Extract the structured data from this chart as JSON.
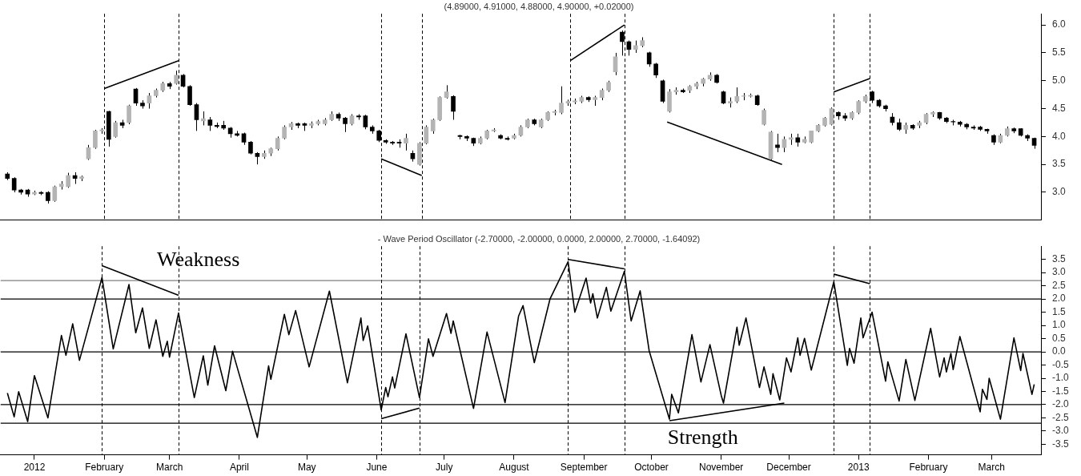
{
  "chart_data": [
    {
      "type": "candlestick",
      "title": "(4.89000, 4.91000, 4.88000, 4.90000, +0.02000)",
      "x": [
        "2011-12-20",
        "2011-12-23",
        "2011-12-26",
        "2011-12-29",
        "2012-01-01",
        "2012-01-04",
        "2012-01-07",
        "2012-01-10",
        "2012-01-13",
        "2012-01-16",
        "2012-01-19",
        "2012-01-22",
        "2012-01-25",
        "2012-01-28",
        "2012-01-31",
        "2012-02-03",
        "2012-02-06",
        "2012-02-09",
        "2012-02-12",
        "2012-02-15",
        "2012-02-18",
        "2012-02-21",
        "2012-02-24",
        "2012-02-27",
        "2012-03-01",
        "2012-03-04",
        "2012-03-07",
        "2012-03-10",
        "2012-03-13",
        "2012-03-16",
        "2012-03-19",
        "2012-03-22",
        "2012-03-25",
        "2012-03-28",
        "2012-03-31",
        "2012-04-03",
        "2012-04-06",
        "2012-04-09",
        "2012-04-12",
        "2012-04-15",
        "2012-04-18",
        "2012-04-21",
        "2012-04-24",
        "2012-04-27",
        "2012-04-30",
        "2012-05-03",
        "2012-05-06",
        "2012-05-09",
        "2012-05-12",
        "2012-05-15",
        "2012-05-18",
        "2012-05-21",
        "2012-05-24",
        "2012-05-27",
        "2012-05-30",
        "2012-06-02",
        "2012-06-05",
        "2012-06-08",
        "2012-06-11",
        "2012-06-14",
        "2012-06-17",
        "2012-06-20",
        "2012-06-23",
        "2012-06-26",
        "2012-06-29",
        "2012-07-02",
        "2012-07-05",
        "2012-07-08",
        "2012-07-11",
        "2012-07-14",
        "2012-07-17",
        "2012-07-20",
        "2012-07-23",
        "2012-07-26",
        "2012-07-29",
        "2012-08-01",
        "2012-08-04",
        "2012-08-07",
        "2012-08-10",
        "2012-08-13",
        "2012-08-16",
        "2012-08-19",
        "2012-08-22",
        "2012-08-25",
        "2012-08-28",
        "2012-08-31",
        "2012-09-03",
        "2012-09-06",
        "2012-09-09",
        "2012-09-12",
        "2012-09-15",
        "2012-09-18",
        "2012-09-21",
        "2012-09-24",
        "2012-09-27",
        "2012-09-30",
        "2012-10-03",
        "2012-10-06",
        "2012-10-09",
        "2012-10-12",
        "2012-10-15",
        "2012-10-18",
        "2012-10-21",
        "2012-10-24",
        "2012-10-27",
        "2012-10-30",
        "2012-11-02",
        "2012-11-05",
        "2012-11-08",
        "2012-11-11",
        "2012-11-14",
        "2012-11-17",
        "2012-11-20",
        "2012-11-23",
        "2012-11-26",
        "2012-11-29",
        "2012-12-02",
        "2012-12-05",
        "2012-12-08",
        "2012-12-11",
        "2012-12-14",
        "2012-12-17",
        "2012-12-20",
        "2012-12-23",
        "2012-12-26",
        "2012-12-29",
        "2013-01-01",
        "2013-01-04",
        "2013-01-07",
        "2013-01-10",
        "2013-01-13",
        "2013-01-16",
        "2013-01-19",
        "2013-01-22",
        "2013-01-25",
        "2013-01-28",
        "2013-01-31",
        "2013-02-03",
        "2013-02-06",
        "2013-02-09",
        "2013-02-12",
        "2013-02-15",
        "2013-02-18",
        "2013-02-21",
        "2013-02-24",
        "2013-02-27",
        "2013-03-02",
        "2013-03-05",
        "2013-03-08",
        "2013-03-11",
        "2013-03-14",
        "2013-03-17",
        "2013-03-20"
      ],
      "ohlc": [
        [
          3.33,
          3.36,
          3.22,
          3.25
        ],
        [
          3.25,
          3.27,
          3.0,
          3.04
        ],
        [
          3.04,
          3.06,
          2.96,
          3.0
        ],
        [
          3.04,
          3.06,
          2.92,
          2.97
        ],
        [
          2.97,
          3.03,
          2.95,
          3.0
        ],
        [
          3.0,
          3.02,
          2.95,
          2.98
        ],
        [
          3.0,
          3.02,
          2.8,
          2.85
        ],
        [
          2.85,
          3.12,
          2.83,
          3.1
        ],
        [
          3.1,
          3.2,
          3.05,
          3.15
        ],
        [
          3.1,
          3.35,
          3.08,
          3.3
        ],
        [
          3.3,
          3.36,
          3.15,
          3.25
        ],
        [
          3.25,
          3.3,
          3.2,
          3.28
        ],
        [
          3.6,
          3.85,
          3.58,
          3.8
        ],
        [
          3.8,
          4.12,
          3.78,
          4.1
        ],
        [
          4.1,
          4.15,
          4.05,
          4.12
        ],
        [
          4.45,
          4.46,
          3.82,
          3.95
        ],
        [
          4.0,
          4.28,
          3.98,
          4.25
        ],
        [
          4.25,
          4.3,
          4.15,
          4.2
        ],
        [
          4.25,
          4.57,
          4.22,
          4.55
        ],
        [
          4.85,
          4.87,
          4.55,
          4.6
        ],
        [
          4.6,
          4.65,
          4.5,
          4.55
        ],
        [
          4.6,
          4.78,
          4.5,
          4.73
        ],
        [
          4.73,
          4.86,
          4.7,
          4.83
        ],
        [
          4.83,
          4.98,
          4.8,
          4.95
        ],
        [
          4.95,
          4.98,
          4.85,
          4.9
        ],
        [
          4.95,
          5.18,
          4.93,
          5.1
        ],
        [
          5.1,
          5.12,
          4.88,
          4.9
        ],
        [
          4.9,
          4.92,
          4.55,
          4.57
        ],
        [
          4.57,
          4.6,
          4.1,
          4.3
        ],
        [
          4.28,
          4.45,
          4.2,
          4.32
        ],
        [
          4.3,
          4.35,
          4.1,
          4.2
        ],
        [
          4.2,
          4.25,
          4.15,
          4.18
        ],
        [
          4.2,
          4.28,
          4.12,
          4.15
        ],
        [
          4.15,
          4.17,
          3.98,
          4.05
        ],
        [
          4.05,
          4.1,
          4.0,
          4.02
        ],
        [
          4.05,
          4.07,
          3.85,
          3.9
        ],
        [
          3.9,
          3.92,
          3.68,
          3.7
        ],
        [
          3.7,
          3.72,
          3.5,
          3.64
        ],
        [
          3.64,
          3.75,
          3.6,
          3.7
        ],
        [
          3.7,
          3.8,
          3.65,
          3.78
        ],
        [
          3.78,
          4.0,
          3.75,
          3.97
        ],
        [
          3.97,
          4.2,
          3.95,
          4.17
        ],
        [
          4.17,
          4.26,
          4.12,
          4.23
        ],
        [
          4.23,
          4.25,
          4.15,
          4.2
        ],
        [
          4.23,
          4.25,
          4.1,
          4.2
        ],
        [
          4.2,
          4.27,
          4.15,
          4.23
        ],
        [
          4.23,
          4.3,
          4.2,
          4.27
        ],
        [
          4.23,
          4.33,
          4.2,
          4.3
        ],
        [
          4.3,
          4.45,
          4.28,
          4.4
        ],
        [
          4.4,
          4.43,
          4.28,
          4.33
        ],
        [
          4.33,
          4.35,
          4.08,
          4.23
        ],
        [
          4.23,
          4.4,
          4.2,
          4.37
        ],
        [
          4.37,
          4.4,
          4.3,
          4.35
        ],
        [
          4.37,
          4.39,
          4.13,
          4.17
        ],
        [
          4.17,
          4.2,
          4.05,
          4.1
        ],
        [
          4.1,
          4.12,
          3.9,
          3.93
        ],
        [
          3.93,
          3.95,
          3.87,
          3.9
        ],
        [
          3.9,
          3.92,
          3.85,
          3.88
        ],
        [
          3.9,
          3.95,
          3.8,
          3.88
        ],
        [
          3.88,
          4.05,
          3.75,
          3.97
        ],
        [
          3.7,
          3.75,
          3.55,
          3.6
        ],
        [
          3.5,
          3.9,
          3.48,
          3.88
        ],
        [
          3.88,
          4.2,
          3.86,
          4.17
        ],
        [
          4.1,
          4.32,
          4.05,
          4.3
        ],
        [
          4.3,
          4.72,
          4.28,
          4.7
        ],
        [
          4.7,
          4.92,
          4.68,
          4.8
        ],
        [
          4.72,
          4.74,
          4.3,
          4.45
        ],
        [
          4.02,
          4.03,
          3.95,
          4.0
        ],
        [
          4.0,
          4.02,
          3.92,
          3.97
        ],
        [
          3.97,
          3.98,
          3.83,
          3.88
        ],
        [
          3.88,
          4.0,
          3.86,
          3.97
        ],
        [
          3.97,
          4.12,
          3.95,
          4.1
        ],
        [
          4.1,
          4.15,
          4.08,
          4.12
        ],
        [
          4.02,
          4.04,
          3.95,
          3.97
        ],
        [
          3.97,
          4.0,
          3.93,
          3.95
        ],
        [
          3.97,
          4.05,
          3.95,
          4.02
        ],
        [
          4.02,
          4.2,
          4.0,
          4.17
        ],
        [
          4.17,
          4.32,
          4.15,
          4.3
        ],
        [
          4.3,
          4.32,
          4.2,
          4.23
        ],
        [
          4.17,
          4.32,
          4.15,
          4.3
        ],
        [
          4.3,
          4.45,
          4.28,
          4.43
        ],
        [
          4.43,
          4.48,
          4.38,
          4.45
        ],
        [
          4.43,
          4.9,
          4.4,
          4.6
        ],
        [
          4.6,
          4.66,
          4.55,
          4.63
        ],
        [
          4.62,
          4.68,
          4.58,
          4.64
        ],
        [
          4.63,
          4.73,
          4.6,
          4.7
        ],
        [
          4.7,
          4.72,
          4.62,
          4.66
        ],
        [
          4.66,
          4.73,
          4.55,
          4.7
        ],
        [
          4.7,
          4.86,
          4.65,
          4.83
        ],
        [
          4.83,
          5.0,
          4.8,
          4.97
        ],
        [
          5.16,
          5.5,
          5.1,
          5.43
        ],
        [
          5.87,
          5.9,
          5.45,
          5.7
        ],
        [
          5.7,
          5.72,
          5.45,
          5.56
        ],
        [
          5.56,
          5.72,
          5.5,
          5.63
        ],
        [
          5.63,
          5.78,
          5.6,
          5.72
        ],
        [
          5.5,
          5.52,
          5.25,
          5.3
        ],
        [
          5.3,
          5.32,
          5.05,
          5.1
        ],
        [
          5.0,
          5.02,
          4.6,
          4.63
        ],
        [
          4.45,
          4.85,
          4.43,
          4.8
        ],
        [
          4.8,
          4.88,
          4.75,
          4.83
        ],
        [
          4.83,
          4.86,
          4.78,
          4.8
        ],
        [
          4.83,
          4.92,
          4.78,
          4.9
        ],
        [
          4.9,
          4.98,
          4.85,
          4.95
        ],
        [
          4.95,
          5.05,
          4.9,
          5.03
        ],
        [
          5.03,
          5.15,
          5.0,
          5.1
        ],
        [
          5.1,
          5.12,
          4.95,
          4.97
        ],
        [
          4.8,
          4.82,
          4.58,
          4.6
        ],
        [
          4.6,
          4.7,
          4.52,
          4.63
        ],
        [
          4.63,
          4.88,
          4.6,
          4.72
        ],
        [
          4.72,
          4.78,
          4.65,
          4.73
        ],
        [
          4.72,
          4.77,
          4.7,
          4.74
        ],
        [
          4.73,
          4.75,
          4.55,
          4.57
        ],
        [
          4.22,
          4.5,
          4.2,
          4.47
        ],
        [
          3.6,
          4.1,
          3.58,
          4.08
        ],
        [
          3.85,
          4.05,
          3.72,
          3.8
        ],
        [
          3.8,
          4.0,
          3.72,
          3.95
        ],
        [
          3.95,
          4.05,
          3.85,
          3.98
        ],
        [
          3.98,
          4.05,
          3.82,
          3.9
        ],
        [
          3.9,
          4.0,
          3.88,
          3.95
        ],
        [
          3.9,
          4.1,
          3.88,
          4.1
        ],
        [
          4.1,
          4.22,
          4.08,
          4.2
        ],
        [
          4.2,
          4.35,
          4.18,
          4.33
        ],
        [
          4.22,
          4.52,
          4.2,
          4.5
        ],
        [
          4.43,
          4.45,
          4.3,
          4.37
        ],
        [
          4.37,
          4.42,
          4.28,
          4.33
        ],
        [
          4.33,
          4.45,
          4.3,
          4.43
        ],
        [
          4.43,
          4.65,
          4.4,
          4.63
        ],
        [
          4.63,
          4.75,
          4.6,
          4.72
        ],
        [
          4.8,
          4.82,
          4.6,
          4.65
        ],
        [
          4.65,
          4.67,
          4.52,
          4.55
        ],
        [
          4.55,
          4.57,
          4.45,
          4.5
        ],
        [
          4.35,
          4.42,
          4.2,
          4.25
        ],
        [
          4.25,
          4.32,
          4.1,
          4.13
        ],
        [
          4.13,
          4.25,
          4.05,
          4.2
        ],
        [
          4.2,
          4.22,
          4.12,
          4.15
        ],
        [
          4.2,
          4.28,
          4.15,
          4.25
        ],
        [
          4.25,
          4.42,
          4.22,
          4.4
        ],
        [
          4.4,
          4.45,
          4.35,
          4.43
        ],
        [
          4.43,
          4.44,
          4.3,
          4.33
        ],
        [
          4.33,
          4.35,
          4.24,
          4.27
        ],
        [
          4.27,
          4.3,
          4.2,
          4.26
        ],
        [
          4.26,
          4.28,
          4.18,
          4.22
        ],
        [
          4.22,
          4.24,
          4.13,
          4.17
        ],
        [
          4.17,
          4.2,
          4.12,
          4.15
        ],
        [
          4.17,
          4.19,
          4.1,
          4.13
        ],
        [
          4.13,
          4.14,
          4.05,
          4.1
        ],
        [
          4.02,
          4.04,
          3.85,
          3.9
        ],
        [
          3.9,
          4.05,
          3.88,
          4.02
        ],
        [
          4.02,
          4.18,
          4.0,
          4.14
        ],
        [
          4.14,
          4.16,
          4.06,
          4.1
        ],
        [
          4.14,
          4.15,
          4.0,
          4.02
        ],
        [
          4.02,
          4.04,
          3.92,
          3.97
        ],
        [
          3.97,
          3.98,
          3.78,
          3.84
        ]
      ],
      "series": [
        {
          "type": "line",
          "x": [
            "2012-02-01",
            "2012-03-05"
          ],
          "values": [
            4.86,
            5.36
          ],
          "color": "#000000"
        },
        {
          "type": "line",
          "x": [
            "2012-06-03",
            "2012-06-21"
          ],
          "values": [
            3.6,
            3.3
          ],
          "color": "#000000"
        },
        {
          "type": "line",
          "x": [
            "2012-08-26",
            "2012-09-19"
          ],
          "values": [
            5.36,
            6.0
          ],
          "color": "#000000"
        },
        {
          "type": "line",
          "x": [
            "2012-10-08",
            "2012-11-28"
          ],
          "values": [
            4.26,
            3.5
          ],
          "color": "#000000"
        },
        {
          "type": "line",
          "x": [
            "2012-12-21",
            "2013-01-06"
          ],
          "values": [
            4.8,
            5.04
          ],
          "color": "#000000"
        }
      ],
      "xlim": [
        "2011-12-17",
        "2013-03-23"
      ],
      "ylim": [
        2.5,
        6.2
      ],
      "yticks": [
        {
          "value": 3,
          "label": "3.0"
        },
        {
          "value": 3.5,
          "label": "3.5"
        },
        {
          "value": 4,
          "label": "4.0"
        },
        {
          "value": 4.5,
          "label": "4.5"
        },
        {
          "value": 5,
          "label": "5.0"
        },
        {
          "value": 5.5,
          "label": "5.5"
        },
        {
          "value": 6,
          "label": "6.0"
        }
      ],
      "tick_labels": "y",
      "ref_lines": [
        {
          "axis": "x",
          "value": "2012-02-01",
          "line_style": "dashed",
          "color": "#000000"
        },
        {
          "axis": "x",
          "value": "2012-03-05",
          "line_style": "dashed",
          "color": "#000000"
        },
        {
          "axis": "x",
          "value": "2012-06-03",
          "line_style": "dashed",
          "color": "#000000"
        },
        {
          "axis": "x",
          "value": "2012-06-21",
          "line_style": "dashed",
          "color": "#000000"
        },
        {
          "axis": "x",
          "value": "2012-08-26",
          "line_style": "dashed",
          "color": "#000000"
        },
        {
          "axis": "x",
          "value": "2012-09-19",
          "line_style": "dashed",
          "color": "#000000"
        },
        {
          "axis": "x",
          "value": "2012-12-21",
          "line_style": "dashed",
          "color": "#000000"
        },
        {
          "axis": "x",
          "value": "2013-01-06",
          "line_style": "dashed",
          "color": "#000000"
        }
      ]
    },
    {
      "type": "line",
      "title": "- Wave Period Oscillator (-2.70000, -2.00000, 0.0000, 2.00000, 2.70000, -1.64092)",
      "series": [
        {
          "x": [
            "2011-12-20",
            "2011-12-23",
            "2011-12-25",
            "2011-12-29",
            "2012-01-01",
            "2012-01-07",
            "2012-01-13",
            "2012-01-15",
            "2012-01-18",
            "2012-01-21",
            "2012-01-31",
            "2012-02-05",
            "2012-02-12",
            "2012-02-15",
            "2012-02-18",
            "2012-02-21",
            "2012-02-24",
            "2012-02-27",
            "2012-02-29",
            "2012-03-01",
            "2012-03-05",
            "2012-03-12",
            "2012-03-16",
            "2012-03-18",
            "2012-03-21",
            "2012-03-26",
            "2012-03-29",
            "2012-04-09",
            "2012-04-14",
            "2012-04-15",
            "2012-04-21",
            "2012-04-23",
            "2012-04-26",
            "2012-05-02",
            "2012-05-11",
            "2012-05-19",
            "2012-05-25",
            "2012-05-26",
            "2012-05-28",
            "2012-06-03",
            "2012-06-05",
            "2012-06-06",
            "2012-06-08",
            "2012-06-09",
            "2012-06-14",
            "2012-06-20",
            "2012-06-24",
            "2012-06-26",
            "2012-07-02",
            "2012-07-04",
            "2012-07-05",
            "2012-07-14",
            "2012-07-20",
            "2012-07-28",
            "2012-08-03",
            "2012-08-05",
            "2012-08-10",
            "2012-08-17",
            "2012-08-25",
            "2012-08-28",
            "2012-09-02",
            "2012-09-04",
            "2012-09-05",
            "2012-09-07",
            "2012-09-11",
            "2012-09-13",
            "2012-09-19",
            "2012-09-22",
            "2012-09-26",
            "2012-09-30",
            "2012-10-09",
            "2012-10-10",
            "2012-10-13",
            "2012-10-19",
            "2012-10-23",
            "2012-10-27",
            "2012-11-01",
            "2012-11-02",
            "2012-11-08",
            "2012-11-09",
            "2012-11-12",
            "2012-11-18",
            "2012-11-20",
            "2012-11-23",
            "2012-11-24",
            "2012-11-27",
            "2012-11-30",
            "2012-12-02",
            "2012-12-05",
            "2012-12-06",
            "2012-12-08",
            "2012-12-11",
            "2012-12-21",
            "2012-12-27",
            "2012-12-28",
            "2012-12-30",
            "2013-01-02",
            "2013-01-03",
            "2013-01-07",
            "2013-01-13",
            "2013-01-14",
            "2013-01-19",
            "2013-01-22",
            "2013-01-26",
            "2013-02-02",
            "2013-02-06",
            "2013-02-08",
            "2013-02-09",
            "2013-02-11",
            "2013-02-12",
            "2013-02-15",
            "2013-02-24",
            "2013-02-25",
            "2013-02-27",
            "2013-02-28",
            "2013-03-05",
            "2013-03-11",
            "2013-03-14",
            "2013-03-15",
            "2013-03-19",
            "2013-03-20"
          ],
          "values": [
            -1.56,
            -2.46,
            -1.51,
            -2.64,
            -0.9,
            -2.5,
            0.62,
            -0.13,
            1.06,
            -0.32,
            2.81,
            0.11,
            2.55,
            0.72,
            1.66,
            0.13,
            1.21,
            -0.17,
            0.4,
            -0.2,
            1.47,
            -1.73,
            -0.15,
            -1.26,
            0.23,
            -1.47,
            0.02,
            -3.24,
            -0.53,
            -1.04,
            1.42,
            0.65,
            1.56,
            -0.57,
            2.3,
            -1.17,
            1.28,
            0.43,
            0.98,
            -2.2,
            -1.35,
            -1.7,
            -0.95,
            -1.37,
            0.68,
            -1.73,
            0.49,
            -0.17,
            1.45,
            0.7,
            1.17,
            -2.14,
            0.75,
            -1.92,
            1.35,
            1.75,
            -0.41,
            2.01,
            3.41,
            1.5,
            2.79,
            1.85,
            2.2,
            1.28,
            2.44,
            1.54,
            3.05,
            1.17,
            2.31,
            0.04,
            -2.55,
            -1.61,
            -2.31,
            0.65,
            -1.14,
            0.27,
            -1.65,
            -1.94,
            0.93,
            0.25,
            1.28,
            -1.35,
            -0.57,
            -1.61,
            -0.83,
            -1.82,
            -0.23,
            -0.76,
            0.53,
            -0.13,
            0.51,
            -0.69,
            2.65,
            -0.51,
            0.13,
            -0.43,
            1.28,
            0.53,
            1.5,
            -1.11,
            -0.38,
            -1.86,
            -0.29,
            -1.84,
            0.89,
            -0.95,
            -0.23,
            -0.76,
            -0.06,
            -0.67,
            0.58,
            -2.27,
            -1.42,
            -1.8,
            -1.0,
            -2.55,
            0.53,
            -0.71,
            -0.06,
            -1.61,
            -1.23
          ],
          "color": "#000000"
        },
        {
          "x": [
            "2012-01-31",
            "2012-03-05"
          ],
          "values": [
            3.26,
            2.14
          ],
          "color": "#000000"
        },
        {
          "x": [
            "2012-06-03",
            "2012-06-20"
          ],
          "values": [
            -2.53,
            -2.13
          ],
          "color": "#000000"
        },
        {
          "x": [
            "2012-08-25",
            "2012-09-19"
          ],
          "values": [
            3.5,
            3.14
          ],
          "color": "#000000"
        },
        {
          "x": [
            "2012-10-09",
            "2012-11-29"
          ],
          "values": [
            -2.61,
            -1.94
          ],
          "color": "#000000"
        },
        {
          "x": [
            "2012-12-21",
            "2013-01-06"
          ],
          "values": [
            2.94,
            2.58
          ],
          "color": "#000000"
        }
      ],
      "xlim": [
        "2011-12-17",
        "2013-03-23"
      ],
      "xticks": [
        {
          "value": "2012-01-01",
          "label": "2012"
        },
        {
          "value": "2012-02-01",
          "label": "February"
        },
        {
          "value": "2012-03-01",
          "label": "March"
        },
        {
          "value": "2012-04-01",
          "label": "April"
        },
        {
          "value": "2012-05-01",
          "label": "May"
        },
        {
          "value": "2012-06-01",
          "label": "June"
        },
        {
          "value": "2012-07-01",
          "label": "July"
        },
        {
          "value": "2012-08-01",
          "label": "August"
        },
        {
          "value": "2012-09-01",
          "label": "September"
        },
        {
          "value": "2012-10-01",
          "label": "October"
        },
        {
          "value": "2012-11-01",
          "label": "November"
        },
        {
          "value": "2012-12-01",
          "label": "December"
        },
        {
          "value": "2013-01-01",
          "label": "2013"
        },
        {
          "value": "2013-02-01",
          "label": "February"
        },
        {
          "value": "2013-03-01",
          "label": "March"
        }
      ],
      "ylim": [
        -3.9,
        4.0
      ],
      "yticks": [
        {
          "value": -3.5,
          "label": "-3.5"
        },
        {
          "value": -3,
          "label": "-3.0"
        },
        {
          "value": -2.5,
          "label": "-2.5"
        },
        {
          "value": -2,
          "label": "-2.0"
        },
        {
          "value": -1.5,
          "label": "-1.5"
        },
        {
          "value": -1,
          "label": "-1.0"
        },
        {
          "value": -0.5,
          "label": "-0.5"
        },
        {
          "value": 0,
          "label": "0.0"
        },
        {
          "value": 0.5,
          "label": "0.5"
        },
        {
          "value": 1,
          "label": "1.0"
        },
        {
          "value": 1.5,
          "label": "1.5"
        },
        {
          "value": 2,
          "label": "2.0"
        },
        {
          "value": 2.5,
          "label": "2.5"
        },
        {
          "value": 3,
          "label": "3.0"
        },
        {
          "value": 3.5,
          "label": "3.5"
        }
      ],
      "ref_lines": [
        {
          "axis": "y",
          "value": 2.7,
          "color": "#808080"
        },
        {
          "axis": "y",
          "value": 2,
          "color": "#000000"
        },
        {
          "axis": "y",
          "value": 0,
          "color": "#000000"
        },
        {
          "axis": "y",
          "value": -2,
          "color": "#000000"
        },
        {
          "axis": "y",
          "value": -2.7,
          "color": "#000000"
        },
        {
          "axis": "x",
          "value": "2012-01-31",
          "line_style": "dashed",
          "color": "#000000"
        },
        {
          "axis": "x",
          "value": "2012-03-05",
          "line_style": "dashed",
          "color": "#000000"
        },
        {
          "axis": "x",
          "value": "2012-06-03",
          "line_style": "dashed",
          "color": "#000000"
        },
        {
          "axis": "x",
          "value": "2012-06-20",
          "line_style": "dashed",
          "color": "#000000"
        },
        {
          "axis": "x",
          "value": "2012-08-25",
          "line_style": "dashed",
          "color": "#000000"
        },
        {
          "axis": "x",
          "value": "2012-09-19",
          "line_style": "dashed",
          "color": "#000000"
        },
        {
          "axis": "x",
          "value": "2012-12-21",
          "line_style": "dashed",
          "color": "#000000"
        },
        {
          "axis": "x",
          "value": "2013-01-06",
          "line_style": "dashed",
          "color": "#000000"
        }
      ],
      "annotations": [
        "Weakness",
        "Strength"
      ]
    }
  ]
}
